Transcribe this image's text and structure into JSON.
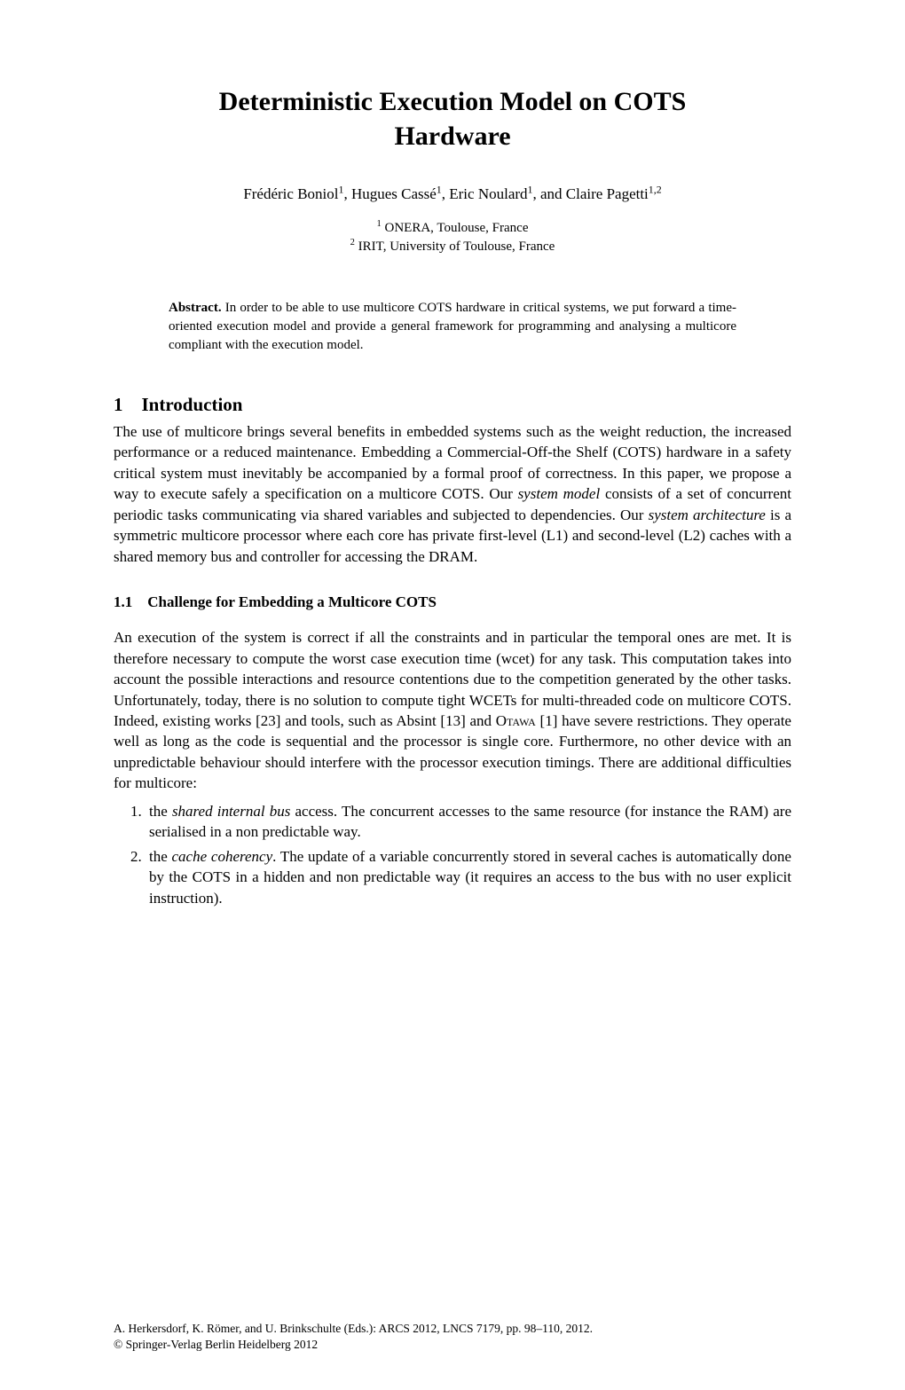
{
  "title_line1": "Deterministic Execution Model on COTS",
  "title_line2": "Hardware",
  "authors_html": "Frédéric Boniol<span class=\"sup\">1</span>, Hugues Cassé<span class=\"sup\">1</span>, Eric Noulard<span class=\"sup\">1</span>, and Claire Pagetti<span class=\"sup\">1,2</span>",
  "affil1_html": "<span class=\"sup\">1</span> ONERA, Toulouse, France",
  "affil2_html": "<span class=\"sup\">2</span> IRIT, University of Toulouse, France",
  "abstract_label": "Abstract.",
  "abstract_text": " In order to be able to use multicore COTS hardware in critical systems, we put forward a time-oriented execution model and provide a general framework for programming and analysing a multicore compliant with the execution model.",
  "s1_heading": "1 Introduction",
  "s1_p1_html": "The use of multicore brings several benefits in embedded systems such as the weight reduction, the increased performance or a reduced maintenance. Embedding a Commercial-Off-the Shelf (COTS) hardware in a safety critical system must inevitably be accompanied by a formal proof of correctness. In this paper, we propose a way to execute safely a specification on a multicore COTS. Our <span class=\"italic\">system model</span> consists of a set of concurrent periodic tasks communicating via shared variables and subjected to dependencies. Our <span class=\"italic\">system architecture</span> is a symmetric multicore processor where each core has private first-level (L1) and second-level (L2) caches with a shared memory bus and controller for accessing the DRAM.",
  "s11_heading": "1.1 Challenge for Embedding a Multicore COTS",
  "s11_p1_html": "An execution of the system is correct if all the constraints and in particular the temporal ones are met. It is therefore necessary to compute the worst case execution time (wcet) for any task. This computation takes into account the possible interactions and resource contentions due to the competition generated by the other tasks. Unfortunately, today, there is no solution to compute tight WCETs for multi-threaded code on multicore COTS. Indeed, existing works [23] and tools, such as Absint [13] and <span class=\"smallcaps\">Otawa</span> [1] have severe restrictions. They operate well as long as the code is sequential and the processor is single core. Furthermore, no other device with an unpredictable behaviour should interfere with the processor execution timings. There are additional difficulties for multicore:",
  "list_item1_html": "the <span class=\"italic\">shared internal bus</span> access. The concurrent accesses to the same resource (for instance the RAM) are serialised in a non predictable way.",
  "list_item2_html": "the <span class=\"italic\">cache coherency</span>. The update of a variable concurrently stored in several caches is automatically done by the COTS in a hidden and non predictable way (it requires an access to the bus with no user explicit instruction).",
  "footer_line1": "A. Herkersdorf, K. Römer, and U. Brinkschulte (Eds.): ARCS 2012, LNCS 7179, pp. 98–110, 2012.",
  "footer_line2": "© Springer-Verlag Berlin Heidelberg 2012"
}
